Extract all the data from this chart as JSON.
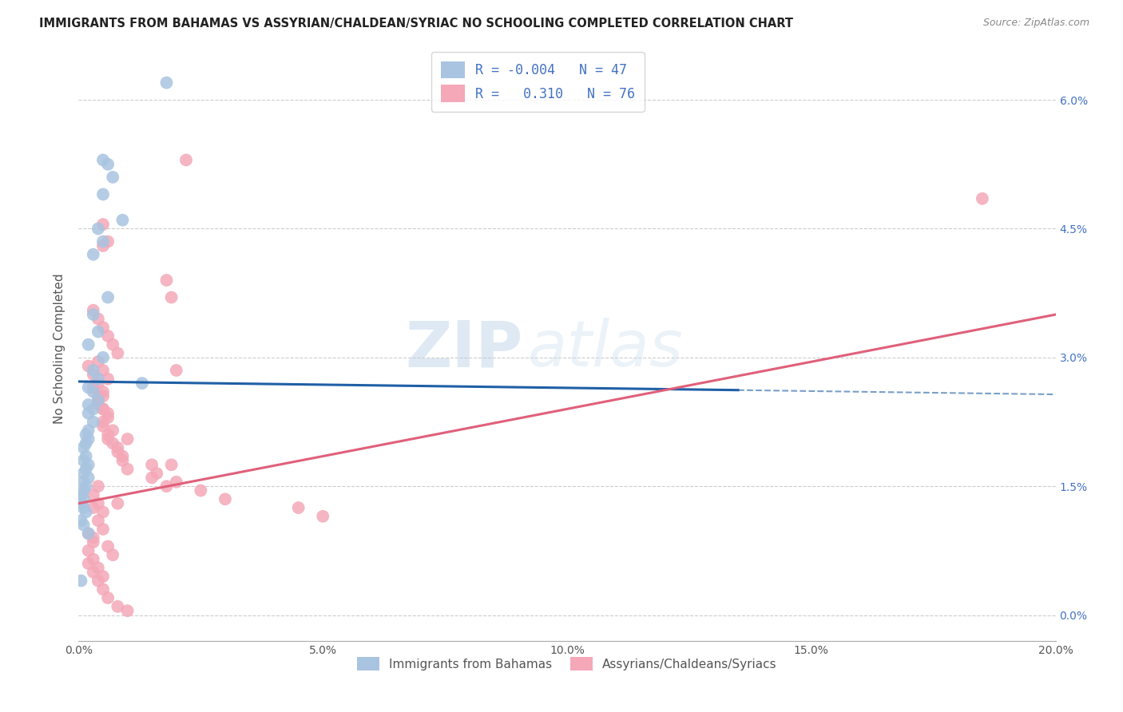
{
  "title": "IMMIGRANTS FROM BAHAMAS VS ASSYRIAN/CHALDEAN/SYRIAC NO SCHOOLING COMPLETED CORRELATION CHART",
  "source": "Source: ZipAtlas.com",
  "ylabel": "No Schooling Completed",
  "ytick_vals": [
    0.0,
    1.5,
    3.0,
    4.5,
    6.0
  ],
  "xtick_vals": [
    0.0,
    5.0,
    10.0,
    15.0,
    20.0
  ],
  "xmin": 0.0,
  "xmax": 20.0,
  "ymin": -0.3,
  "ymax": 6.5,
  "blue_R": "-0.004",
  "blue_N": "47",
  "pink_R": "0.310",
  "pink_N": "76",
  "blue_color": "#a8c4e0",
  "pink_color": "#f4a8b8",
  "blue_line_color": "#1f5fa6",
  "pink_line_color": "#e0607a",
  "watermark_zip": "ZIP",
  "watermark_atlas": "atlas",
  "blue_scatter_x": [
    1.8,
    0.5,
    0.6,
    0.7,
    0.5,
    0.9,
    0.4,
    0.5,
    0.3,
    0.6,
    0.3,
    0.4,
    0.2,
    0.5,
    0.3,
    0.4,
    0.2,
    0.3,
    0.4,
    0.2,
    0.3,
    0.2,
    0.3,
    0.2,
    0.15,
    0.2,
    0.15,
    0.1,
    0.15,
    0.1,
    0.2,
    0.15,
    0.1,
    0.2,
    0.1,
    0.15,
    0.1,
    0.05,
    0.1,
    0.05,
    0.1,
    0.15,
    0.05,
    0.1,
    0.2,
    0.05,
    1.3
  ],
  "blue_scatter_y": [
    6.2,
    5.3,
    5.25,
    5.1,
    4.9,
    4.6,
    4.5,
    4.35,
    4.2,
    3.7,
    3.5,
    3.3,
    3.15,
    3.0,
    2.85,
    2.75,
    2.65,
    2.6,
    2.5,
    2.45,
    2.4,
    2.35,
    2.25,
    2.15,
    2.1,
    2.05,
    2.0,
    1.95,
    1.85,
    1.8,
    1.75,
    1.7,
    1.65,
    1.6,
    1.55,
    1.5,
    1.45,
    1.4,
    1.35,
    1.3,
    1.25,
    1.2,
    1.1,
    1.05,
    0.95,
    0.4,
    2.7
  ],
  "pink_scatter_x": [
    2.2,
    0.5,
    0.6,
    0.5,
    1.8,
    1.9,
    0.3,
    0.4,
    0.5,
    0.6,
    0.7,
    0.8,
    0.4,
    0.5,
    0.6,
    0.3,
    0.5,
    0.4,
    0.6,
    0.5,
    0.7,
    1.0,
    0.8,
    0.9,
    1.5,
    1.6,
    2.0,
    2.5,
    3.0,
    4.5,
    5.0,
    0.2,
    0.3,
    0.4,
    0.5,
    0.4,
    0.5,
    0.6,
    0.5,
    0.6,
    0.7,
    0.8,
    0.9,
    1.0,
    1.5,
    1.8,
    0.3,
    0.4,
    0.5,
    0.4,
    0.5,
    0.3,
    0.6,
    0.7,
    0.2,
    0.3,
    0.4,
    0.5,
    0.6,
    0.8,
    1.0,
    0.2,
    0.3,
    0.2,
    0.3,
    0.4,
    0.5,
    18.5,
    1.9,
    0.4,
    0.5,
    2.0,
    0.4,
    0.6,
    0.8,
    0.3
  ],
  "pink_scatter_y": [
    5.3,
    4.55,
    4.35,
    4.3,
    3.9,
    3.7,
    3.55,
    3.45,
    3.35,
    3.25,
    3.15,
    3.05,
    2.95,
    2.85,
    2.75,
    2.65,
    2.55,
    2.45,
    2.35,
    2.25,
    2.15,
    2.05,
    1.95,
    1.85,
    1.75,
    1.65,
    1.55,
    1.45,
    1.35,
    1.25,
    1.15,
    2.9,
    2.8,
    2.7,
    2.6,
    2.5,
    2.4,
    2.3,
    2.2,
    2.1,
    2.0,
    1.9,
    1.8,
    1.7,
    1.6,
    1.5,
    1.4,
    1.3,
    1.2,
    1.1,
    1.0,
    0.9,
    0.8,
    0.7,
    0.6,
    0.5,
    0.4,
    0.3,
    0.2,
    0.1,
    0.05,
    0.95,
    0.85,
    0.75,
    0.65,
    0.55,
    0.45,
    4.85,
    1.75,
    2.55,
    2.4,
    2.85,
    1.5,
    2.05,
    1.3,
    1.25
  ],
  "blue_line_x0": 0.0,
  "blue_line_x1": 13.5,
  "blue_line_y0": 2.72,
  "blue_line_y1": 2.62,
  "pink_line_x0": 0.0,
  "pink_line_x1": 20.0,
  "pink_line_y0": 1.3,
  "pink_line_y1": 3.5
}
